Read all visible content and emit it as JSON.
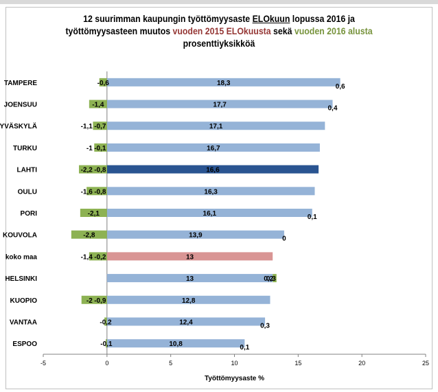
{
  "title": {
    "line1_a": "12 suurimman kaupungin työttömyysaste ",
    "line1_u": "ELOkuun",
    "line1_b": " lopussa 2016 ja",
    "line2_a": "työttömyysasteen muutos ",
    "line2_red": "vuoden 2015 ELOkuusta",
    "line2_mid": " sekä ",
    "line2_green": "vuoden 2016 alusta",
    "line3": "prosenttiyksikköä"
  },
  "colors": {
    "rate": "#95b3d7",
    "lahti": "#2a5491",
    "koko_maa": "#d99594",
    "change_2016": "#8db253",
    "change_2015_label": "#953735",
    "axis": "#808080"
  },
  "chart_data": {
    "type": "bar",
    "orientation": "horizontal",
    "xlabel": "Työttömyysaste %",
    "xlim": [
      -5,
      25
    ],
    "xticks": [
      "-5",
      "0",
      "5",
      "10",
      "15",
      "20",
      "25"
    ],
    "categories": [
      "TAMPERE",
      "JOENSUU",
      "JYVÄSKYLÄ",
      "TURKU",
      "LAHTI",
      "OULU",
      "PORI",
      "KOUVOLA",
      "koko maa",
      "HELSINKI",
      "KUOPIO",
      "VANTAA",
      "ESPOO"
    ],
    "series": [
      {
        "key": "rate",
        "values": [
          18.3,
          17.7,
          17.1,
          16.7,
          16.6,
          16.3,
          16.1,
          13.9,
          13,
          13,
          12.8,
          12.4,
          10.8
        ],
        "labels": [
          "18,3",
          "17,7",
          "17,1",
          "16,7",
          "16,6",
          "16,3",
          "16,1",
          "13,9",
          "13",
          "13",
          "12,8",
          "12,4",
          "10,8"
        ]
      },
      {
        "key": "change_2016",
        "values": [
          -0.6,
          -1.4,
          -1.1,
          -1,
          -2.2,
          -1.6,
          -2.1,
          -2.8,
          -1.4,
          0.3,
          -2,
          -0.2,
          -0.1
        ],
        "labels": [
          "-0,6",
          "-1,4",
          "-1,1",
          "-1",
          "-2,2",
          "-1,6",
          "-2,1",
          "-2,8",
          "-1,4",
          "0,3",
          "-2",
          "-0,2",
          "-0,1"
        ]
      },
      {
        "key": "change_2015",
        "values": [
          0.6,
          0.4,
          -0.7,
          -0.1,
          -0.8,
          -0.8,
          0.1,
          0,
          -0.2,
          0.2,
          -0.9,
          0.3,
          0.1
        ],
        "labels": [
          "0,6",
          "0,4",
          "-0,7",
          "-0,1",
          "-0,8",
          "-0,8",
          "0,1",
          "0",
          "-0,2",
          "0,2",
          "-0,9",
          "0,3",
          "0,1"
        ]
      }
    ]
  }
}
